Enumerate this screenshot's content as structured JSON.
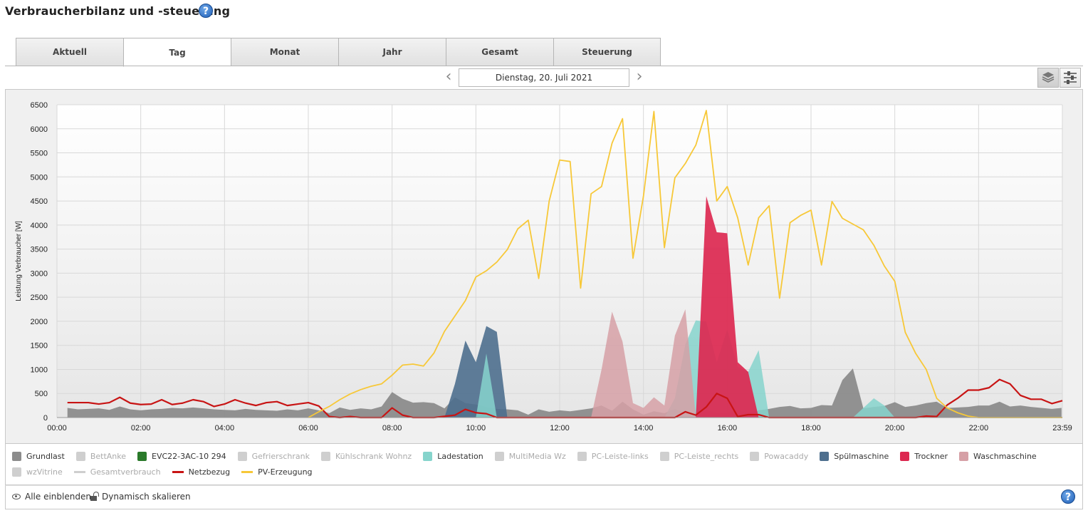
{
  "page": {
    "title": "Verbraucherbilanz und -steuerung",
    "help": "?"
  },
  "tabs": [
    {
      "label": "Aktuell",
      "active": false
    },
    {
      "label": "Tag",
      "active": true
    },
    {
      "label": "Monat",
      "active": false
    },
    {
      "label": "Jahr",
      "active": false
    },
    {
      "label": "Gesamt",
      "active": false
    },
    {
      "label": "Steuerung",
      "active": false
    }
  ],
  "date_nav": {
    "date": "Dienstag, 20. Juli 2021",
    "prev_icon": "chevron-left-icon",
    "next_icon": "chevron-right-icon"
  },
  "view_buttons": {
    "stacked_icon": "layers-icon",
    "list_icon": "list-icon"
  },
  "legend": [
    {
      "name": "Grundlast",
      "color": "#8c8c8c",
      "type": "area",
      "visible": true
    },
    {
      "name": "BettAnke",
      "color": "#cfcfcf",
      "type": "area",
      "visible": false
    },
    {
      "name": "EVC22-3AC-10 294",
      "color": "#2a7a2a",
      "type": "area",
      "visible": true
    },
    {
      "name": "Gefrierschrank",
      "color": "#cfcfcf",
      "type": "area",
      "visible": false
    },
    {
      "name": "Kühlschrank Wohnz",
      "color": "#cfcfcf",
      "type": "area",
      "visible": false
    },
    {
      "name": "Ladestation",
      "color": "#86d4cc",
      "type": "area",
      "visible": true
    },
    {
      "name": "MultiMedia Wz",
      "color": "#cfcfcf",
      "type": "area",
      "visible": false
    },
    {
      "name": "PC-Leiste-links",
      "color": "#cfcfcf",
      "type": "area",
      "visible": false
    },
    {
      "name": "PC-Leiste_rechts",
      "color": "#cfcfcf",
      "type": "area",
      "visible": false
    },
    {
      "name": "Powacaddy",
      "color": "#cfcfcf",
      "type": "area",
      "visible": false
    },
    {
      "name": "Spülmaschine",
      "color": "#4e6f8e",
      "type": "area",
      "visible": true
    },
    {
      "name": "Trockner",
      "color": "#dc2850",
      "type": "area",
      "visible": true
    },
    {
      "name": "Waschmaschine",
      "color": "#d6a0a6",
      "type": "area",
      "visible": true
    },
    {
      "name": "wzVitrine",
      "color": "#cfcfcf",
      "type": "area",
      "visible": false
    },
    {
      "name": "Gesamtverbrauch",
      "color": "#cfcfcf",
      "type": "line",
      "visible": false
    },
    {
      "name": "Netzbezug",
      "color": "#c81414",
      "type": "line",
      "visible": true
    },
    {
      "name": "PV-Erzeugung",
      "color": "#f7c838",
      "type": "line",
      "visible": true
    }
  ],
  "footer": {
    "show_all": "Alle einblenden",
    "dynamic_scale": "Dynamisch skalieren"
  },
  "chart_data": {
    "type": "area",
    "ylabel": "Leistung Verbraucher [W]",
    "ylim": [
      0,
      6500
    ],
    "yticks": [
      0,
      500,
      1000,
      1500,
      2000,
      2500,
      3000,
      3500,
      4000,
      4500,
      5000,
      5500,
      6000,
      6500
    ],
    "xticks": [
      "00:00",
      "02:00",
      "04:00",
      "06:00",
      "08:00",
      "10:00",
      "12:00",
      "14:00",
      "16:00",
      "18:00",
      "20:00",
      "22:00",
      "23:59"
    ],
    "xlim_hours": [
      0,
      24
    ],
    "grid": true,
    "series": [
      {
        "name": "Grundlast",
        "kind": "area",
        "points": [
          [
            0.25,
            200
          ],
          [
            0.5,
            170
          ],
          [
            0.75,
            180
          ],
          [
            1,
            190
          ],
          [
            1.25,
            160
          ],
          [
            1.5,
            230
          ],
          [
            1.75,
            170
          ],
          [
            2,
            150
          ],
          [
            2.25,
            170
          ],
          [
            2.5,
            180
          ],
          [
            2.75,
            200
          ],
          [
            3,
            190
          ],
          [
            3.25,
            210
          ],
          [
            3.5,
            190
          ],
          [
            3.75,
            170
          ],
          [
            4,
            160
          ],
          [
            4.25,
            150
          ],
          [
            4.5,
            180
          ],
          [
            4.75,
            160
          ],
          [
            5,
            150
          ],
          [
            5.25,
            140
          ],
          [
            5.5,
            170
          ],
          [
            5.75,
            150
          ],
          [
            6,
            190
          ],
          [
            6.25,
            150
          ],
          [
            6.5,
            90
          ],
          [
            6.75,
            210
          ],
          [
            7,
            160
          ],
          [
            7.25,
            190
          ],
          [
            7.5,
            170
          ],
          [
            7.75,
            230
          ],
          [
            8,
            530
          ],
          [
            8.25,
            390
          ],
          [
            8.5,
            310
          ],
          [
            8.75,
            320
          ],
          [
            9,
            300
          ],
          [
            9.25,
            190
          ],
          [
            9.5,
            420
          ],
          [
            9.75,
            300
          ],
          [
            10,
            270
          ],
          [
            10.25,
            220
          ],
          [
            10.5,
            180
          ],
          [
            10.75,
            170
          ],
          [
            11,
            150
          ],
          [
            11.25,
            60
          ],
          [
            11.5,
            170
          ],
          [
            11.75,
            120
          ],
          [
            12,
            150
          ],
          [
            12.25,
            130
          ],
          [
            12.5,
            160
          ],
          [
            12.75,
            190
          ],
          [
            13,
            250
          ],
          [
            13.25,
            140
          ],
          [
            13.5,
            330
          ],
          [
            13.75,
            170
          ],
          [
            14,
            60
          ],
          [
            14.25,
            130
          ],
          [
            14.5,
            90
          ],
          [
            14.75,
            180
          ],
          [
            15,
            90
          ],
          [
            15.25,
            100
          ],
          [
            15.5,
            150
          ],
          [
            15.75,
            100
          ],
          [
            16,
            100
          ],
          [
            16.25,
            150
          ],
          [
            16.5,
            90
          ],
          [
            16.75,
            150
          ],
          [
            17,
            180
          ],
          [
            17.25,
            220
          ],
          [
            17.5,
            240
          ],
          [
            17.75,
            190
          ],
          [
            18,
            200
          ],
          [
            18.25,
            260
          ],
          [
            18.5,
            250
          ],
          [
            18.75,
            780
          ],
          [
            19,
            1020
          ],
          [
            19.25,
            190
          ],
          [
            19.5,
            220
          ],
          [
            19.75,
            240
          ],
          [
            20,
            320
          ],
          [
            20.25,
            220
          ],
          [
            20.5,
            250
          ],
          [
            20.75,
            300
          ],
          [
            21,
            330
          ],
          [
            21.25,
            200
          ],
          [
            21.5,
            210
          ],
          [
            21.75,
            220
          ],
          [
            22,
            250
          ],
          [
            22.25,
            250
          ],
          [
            22.5,
            330
          ],
          [
            22.75,
            230
          ],
          [
            23,
            250
          ],
          [
            23.25,
            220
          ],
          [
            23.5,
            200
          ],
          [
            23.75,
            180
          ],
          [
            23.98,
            200
          ]
        ]
      },
      {
        "name": "Spülmaschine",
        "kind": "area",
        "points": [
          [
            9.25,
            0
          ],
          [
            9.5,
            700
          ],
          [
            9.75,
            1600
          ],
          [
            10,
            1150
          ],
          [
            10.25,
            1900
          ],
          [
            10.5,
            1780
          ],
          [
            10.75,
            0
          ]
        ]
      },
      {
        "name": "Ladestation",
        "kind": "area",
        "points": [
          [
            10,
            0
          ],
          [
            10.25,
            1330
          ],
          [
            10.5,
            0
          ],
          [
            14.5,
            0
          ],
          [
            14.75,
            400
          ],
          [
            15,
            1520
          ],
          [
            15.25,
            2020
          ],
          [
            15.5,
            1990
          ],
          [
            15.75,
            1150
          ],
          [
            16,
            1830
          ],
          [
            16.25,
            1050
          ],
          [
            16.5,
            950
          ],
          [
            16.75,
            1400
          ],
          [
            17,
            0
          ],
          [
            19,
            0
          ],
          [
            19.25,
            200
          ],
          [
            19.5,
            400
          ],
          [
            19.75,
            250
          ],
          [
            20,
            0
          ]
        ]
      },
      {
        "name": "Waschmaschine",
        "kind": "area",
        "points": [
          [
            12.75,
            0
          ],
          [
            13,
            1000
          ],
          [
            13.25,
            2200
          ],
          [
            13.5,
            1580
          ],
          [
            13.75,
            300
          ],
          [
            14,
            200
          ],
          [
            14.25,
            420
          ],
          [
            14.5,
            250
          ],
          [
            14.75,
            1700
          ],
          [
            15,
            2250
          ],
          [
            15.25,
            0
          ]
        ]
      },
      {
        "name": "Trockner",
        "kind": "area",
        "points": [
          [
            15.25,
            0
          ],
          [
            15.5,
            4600
          ],
          [
            15.75,
            3850
          ],
          [
            16,
            3830
          ],
          [
            16.25,
            1150
          ],
          [
            16.5,
            950
          ],
          [
            16.75,
            0
          ]
        ]
      },
      {
        "name": "Netzbezug",
        "kind": "line",
        "points": [
          [
            0.25,
            310
          ],
          [
            0.5,
            310
          ],
          [
            0.75,
            310
          ],
          [
            1,
            280
          ],
          [
            1.25,
            310
          ],
          [
            1.5,
            420
          ],
          [
            1.75,
            300
          ],
          [
            2,
            270
          ],
          [
            2.25,
            280
          ],
          [
            2.5,
            370
          ],
          [
            2.75,
            270
          ],
          [
            3,
            300
          ],
          [
            3.25,
            370
          ],
          [
            3.5,
            330
          ],
          [
            3.75,
            230
          ],
          [
            4,
            280
          ],
          [
            4.25,
            370
          ],
          [
            4.5,
            300
          ],
          [
            4.75,
            250
          ],
          [
            5,
            310
          ],
          [
            5.25,
            330
          ],
          [
            5.5,
            250
          ],
          [
            5.75,
            280
          ],
          [
            6,
            310
          ],
          [
            6.25,
            240
          ],
          [
            6.5,
            20
          ],
          [
            6.75,
            0
          ],
          [
            7,
            20
          ],
          [
            7.25,
            0
          ],
          [
            7.5,
            0
          ],
          [
            7.75,
            0
          ],
          [
            8,
            200
          ],
          [
            8.25,
            50
          ],
          [
            8.5,
            0
          ],
          [
            9,
            0
          ],
          [
            9.5,
            50
          ],
          [
            9.75,
            170
          ],
          [
            10,
            100
          ],
          [
            10.25,
            80
          ],
          [
            10.5,
            0
          ],
          [
            14.75,
            0
          ],
          [
            15,
            120
          ],
          [
            15.25,
            50
          ],
          [
            15.5,
            220
          ],
          [
            15.75,
            500
          ],
          [
            16,
            400
          ],
          [
            16.25,
            20
          ],
          [
            16.5,
            60
          ],
          [
            16.75,
            60
          ],
          [
            17,
            0
          ],
          [
            20.5,
            0
          ],
          [
            20.75,
            30
          ],
          [
            21,
            20
          ],
          [
            21.25,
            260
          ],
          [
            21.5,
            400
          ],
          [
            21.75,
            570
          ],
          [
            22,
            570
          ],
          [
            22.25,
            620
          ],
          [
            22.5,
            790
          ],
          [
            22.75,
            700
          ],
          [
            23,
            460
          ],
          [
            23.25,
            380
          ],
          [
            23.5,
            380
          ],
          [
            23.75,
            290
          ],
          [
            24,
            350
          ]
        ]
      },
      {
        "name": "PV-Erzeugung",
        "kind": "line",
        "points": [
          [
            6,
            0
          ],
          [
            6.25,
            120
          ],
          [
            6.5,
            230
          ],
          [
            6.75,
            370
          ],
          [
            7,
            490
          ],
          [
            7.25,
            580
          ],
          [
            7.5,
            650
          ],
          [
            7.75,
            700
          ],
          [
            8,
            880
          ],
          [
            8.25,
            1090
          ],
          [
            8.5,
            1110
          ],
          [
            8.75,
            1070
          ],
          [
            9,
            1340
          ],
          [
            9.25,
            1790
          ],
          [
            9.5,
            2110
          ],
          [
            9.75,
            2430
          ],
          [
            10,
            2920
          ],
          [
            10.25,
            3050
          ],
          [
            10.5,
            3230
          ],
          [
            10.75,
            3490
          ],
          [
            11,
            3920
          ],
          [
            11.25,
            4100
          ],
          [
            11.5,
            2890
          ],
          [
            11.75,
            4500
          ],
          [
            12,
            5350
          ],
          [
            12.25,
            5320
          ],
          [
            12.5,
            2690
          ],
          [
            12.75,
            4650
          ],
          [
            13,
            4800
          ],
          [
            13.25,
            5700
          ],
          [
            13.5,
            6210
          ],
          [
            13.75,
            3310
          ],
          [
            14,
            4600
          ],
          [
            14.25,
            6360
          ],
          [
            14.5,
            3530
          ],
          [
            14.75,
            4980
          ],
          [
            15,
            5280
          ],
          [
            15.25,
            5660
          ],
          [
            15.5,
            6380
          ],
          [
            15.75,
            4500
          ],
          [
            16,
            4800
          ],
          [
            16.25,
            4150
          ],
          [
            16.5,
            3170
          ],
          [
            16.75,
            4150
          ],
          [
            17,
            4400
          ],
          [
            17.25,
            2480
          ],
          [
            17.5,
            4050
          ],
          [
            17.75,
            4200
          ],
          [
            18,
            4310
          ],
          [
            18.25,
            3170
          ],
          [
            18.5,
            4490
          ],
          [
            18.75,
            4140
          ],
          [
            19,
            4020
          ],
          [
            19.25,
            3900
          ],
          [
            19.5,
            3580
          ],
          [
            19.75,
            3150
          ],
          [
            20,
            2830
          ],
          [
            20.25,
            1770
          ],
          [
            20.5,
            1330
          ],
          [
            20.75,
            1000
          ],
          [
            21,
            400
          ],
          [
            21.25,
            200
          ],
          [
            21.5,
            100
          ],
          [
            21.75,
            30
          ],
          [
            22,
            0
          ],
          [
            24,
            0
          ]
        ]
      }
    ]
  }
}
